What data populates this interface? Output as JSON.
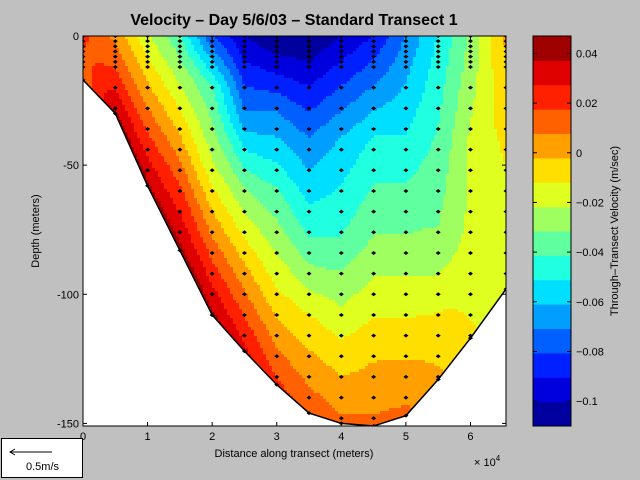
{
  "chart_data": {
    "type": "heatmap",
    "title": "Velocity – Day 5/6/03 – Standard Transect 1",
    "xlabel": "Distance along transect (meters)",
    "ylabel": "Depth (meters)",
    "x_multiplier": "× 10",
    "x_multiplier_exp": "4",
    "colorbar_label": "Through–Transect Velocity (m/sec)",
    "xlim": [
      0,
      65500
    ],
    "ylim": [
      -151,
      0
    ],
    "x_ticks": [
      0,
      1,
      2,
      3,
      4,
      5,
      6
    ],
    "y_ticks": [
      0,
      -50,
      -100,
      -150
    ],
    "clim": [
      -0.11,
      0.047
    ],
    "colorbar_ticks": [
      "0.04",
      "0.02",
      "0",
      "−0.02",
      "−0.04",
      "−0.06",
      "−0.08",
      "−0.1"
    ],
    "colorbar_tick_values": [
      0.04,
      0.02,
      0,
      -0.02,
      -0.04,
      -0.06,
      -0.08,
      -0.1
    ],
    "colorbar_levels": 16,
    "colormap": "jet",
    "bottom_profile": {
      "x": [
        0,
        5000,
        10000,
        15000,
        20000,
        25000,
        30000,
        35000,
        40000,
        45000,
        50000,
        55000,
        60000,
        65500
      ],
      "depth": [
        -17,
        -30,
        -58,
        -83,
        -108,
        -122,
        -135,
        -146,
        -150,
        -151,
        -147,
        -133,
        -117,
        -98
      ]
    },
    "velocity_profiles": [
      {
        "x": 0,
        "depth": [
          0,
          -10,
          -16
        ],
        "velocity": [
          0.02,
          0.015,
          0.01
        ]
      },
      {
        "x": 5000,
        "depth": [
          0,
          -15,
          -30
        ],
        "velocity": [
          0.005,
          0.02,
          0.04
        ]
      },
      {
        "x": 10000,
        "depth": [
          0,
          -20,
          -40,
          -58
        ],
        "velocity": [
          -0.02,
          0.0,
          0.02,
          0.04
        ]
      },
      {
        "x": 15000,
        "depth": [
          0,
          -20,
          -40,
          -60,
          -83
        ],
        "velocity": [
          -0.04,
          -0.02,
          0.0,
          0.02,
          0.04
        ]
      },
      {
        "x": 20000,
        "depth": [
          0,
          -20,
          -50,
          -80,
          -108
        ],
        "velocity": [
          -0.08,
          -0.04,
          -0.02,
          0.01,
          0.04
        ]
      },
      {
        "x": 25000,
        "depth": [
          0,
          -30,
          -60,
          -90,
          -122
        ],
        "velocity": [
          -0.1,
          -0.07,
          -0.03,
          0.0,
          0.03
        ]
      },
      {
        "x": 30000,
        "depth": [
          0,
          -30,
          -60,
          -100,
          -135
        ],
        "velocity": [
          -0.11,
          -0.07,
          -0.04,
          -0.01,
          0.02
        ]
      },
      {
        "x": 35000,
        "depth": [
          0,
          -40,
          -80,
          -110,
          -146
        ],
        "velocity": [
          -0.11,
          -0.07,
          -0.04,
          -0.01,
          0.015
        ]
      },
      {
        "x": 40000,
        "depth": [
          0,
          -40,
          -80,
          -120,
          -150
        ],
        "velocity": [
          -0.1,
          -0.06,
          -0.04,
          -0.01,
          0.01
        ]
      },
      {
        "x": 45000,
        "depth": [
          0,
          -40,
          -80,
          -120,
          -151
        ],
        "velocity": [
          -0.09,
          -0.05,
          -0.03,
          -0.005,
          0.01
        ]
      },
      {
        "x": 50000,
        "depth": [
          0,
          -40,
          -80,
          -120,
          -147
        ],
        "velocity": [
          -0.07,
          -0.05,
          -0.03,
          -0.005,
          0.01
        ]
      },
      {
        "x": 55000,
        "depth": [
          0,
          -40,
          -80,
          -110,
          -133
        ],
        "velocity": [
          -0.05,
          -0.04,
          -0.03,
          -0.01,
          0.0
        ]
      },
      {
        "x": 60000,
        "depth": [
          0,
          -40,
          -80,
          -117
        ],
        "velocity": [
          -0.03,
          -0.02,
          -0.02,
          -0.01
        ]
      },
      {
        "x": 65500,
        "depth": [
          0,
          -40,
          -98
        ],
        "velocity": [
          0.0,
          -0.01,
          -0.02
        ]
      }
    ],
    "arrow_legend": "0.5m/s"
  }
}
